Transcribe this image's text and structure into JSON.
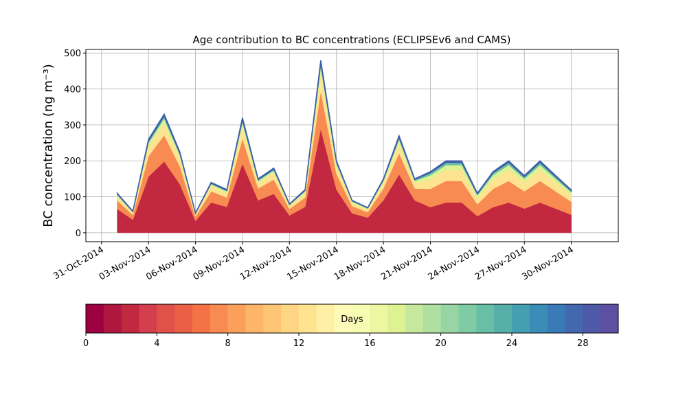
{
  "chart_data": {
    "type": "stacked_area",
    "title": "Age contribution to BC concentrations (ECLIPSEv6 and CAMS)",
    "y_label": "BC concentration (ng m⁻³)",
    "x": [
      "2014-11-01",
      "2014-11-02",
      "2014-11-03",
      "2014-11-04",
      "2014-11-05",
      "2014-11-06",
      "2014-11-07",
      "2014-11-08",
      "2014-11-09",
      "2014-11-10",
      "2014-11-11",
      "2014-11-12",
      "2014-11-13",
      "2014-11-14",
      "2014-11-15",
      "2014-11-16",
      "2014-11-17",
      "2014-11-18",
      "2014-11-19",
      "2014-11-20",
      "2014-11-21",
      "2014-11-22",
      "2014-11-23",
      "2014-11-24",
      "2014-11-25",
      "2014-11-26",
      "2014-11-27",
      "2014-11-28",
      "2014-11-29",
      "2014-11-30"
    ],
    "series": [
      {
        "color": "#c2283f",
        "values": [
          66,
          36,
          156,
          198,
          135,
          33,
          84,
          72,
          192,
          90,
          108,
          48,
          72,
          288,
          120,
          54,
          42,
          90,
          162,
          90,
          71,
          84,
          84,
          46,
          71,
          84,
          67,
          84,
          67,
          50
        ]
      },
      {
        "color": "#f88b52",
        "values": [
          24,
          13,
          57,
          73,
          50,
          12,
          31,
          26,
          70,
          33,
          40,
          18,
          26,
          106,
          44,
          20,
          15,
          33,
          59,
          33,
          51,
          60,
          60,
          33,
          51,
          60,
          48,
          60,
          48,
          36
        ]
      },
      {
        "color": "#fee391",
        "values": [
          11,
          6,
          26,
          33,
          22,
          6,
          14,
          12,
          32,
          15,
          18,
          8,
          12,
          48,
          20,
          9,
          7,
          15,
          27,
          15,
          26,
          30,
          30,
          17,
          26,
          30,
          24,
          30,
          24,
          18
        ]
      },
      {
        "color": "#def294",
        "values": [
          4,
          2,
          10,
          13,
          9,
          2,
          6,
          5,
          13,
          6,
          7,
          3,
          5,
          19,
          8,
          4,
          3,
          6,
          11,
          6,
          12,
          14,
          14,
          8,
          12,
          14,
          11,
          14,
          11,
          8
        ]
      },
      {
        "color": "#69bfa5",
        "values": [
          3,
          2,
          7,
          8,
          6,
          1,
          3,
          3,
          8,
          4,
          4,
          2,
          3,
          12,
          5,
          2,
          2,
          4,
          7,
          4,
          7,
          8,
          8,
          4,
          7,
          8,
          6,
          8,
          6,
          5
        ]
      },
      {
        "color": "#4268ae",
        "values": [
          2,
          1,
          4,
          5,
          3,
          1,
          2,
          2,
          5,
          2,
          3,
          1,
          2,
          7,
          3,
          1,
          1,
          2,
          4,
          2,
          3,
          4,
          4,
          2,
          3,
          4,
          3,
          4,
          3,
          2
        ]
      }
    ],
    "xlim": [
      "2014-10-30",
      "2014-12-03"
    ],
    "xticks": [
      {
        "value": "2014-10-31",
        "label": "31-Oct-2014"
      },
      {
        "value": "2014-11-03",
        "label": "03-Nov-2014"
      },
      {
        "value": "2014-11-06",
        "label": "06-Nov-2014"
      },
      {
        "value": "2014-11-09",
        "label": "09-Nov-2014"
      },
      {
        "value": "2014-11-12",
        "label": "12-Nov-2014"
      },
      {
        "value": "2014-11-15",
        "label": "15-Nov-2014"
      },
      {
        "value": "2014-11-18",
        "label": "18-Nov-2014"
      },
      {
        "value": "2014-11-21",
        "label": "21-Nov-2014"
      },
      {
        "value": "2014-11-24",
        "label": "24-Nov-2014"
      },
      {
        "value": "2014-11-27",
        "label": "27-Nov-2014"
      },
      {
        "value": "2014-11-30",
        "label": "30-Nov-2014"
      }
    ],
    "ylim": [
      -25,
      510
    ],
    "yticks": [
      0,
      100,
      200,
      300,
      400,
      500
    ],
    "grid": true,
    "colorbar": {
      "label": "Days",
      "lim": [
        0,
        30
      ],
      "ticks": [
        0,
        4,
        8,
        12,
        16,
        20,
        24,
        28
      ],
      "colors": [
        "#9e0142",
        "#b0173f",
        "#c2283f",
        "#d53e4f",
        "#e05149",
        "#ea6046",
        "#f47245",
        "#f88b52",
        "#fba05b",
        "#fdb567",
        "#fdc574",
        "#fed582",
        "#fee391",
        "#fff0a6",
        "#fefbb8",
        "#f7fcb3",
        "#ecf7a2",
        "#def294",
        "#c6e89e",
        "#b0dfa2",
        "#98d5a4",
        "#7fcba4",
        "#69bfa5",
        "#56b0a9",
        "#449fb0",
        "#3b8cb7",
        "#3a7ab6",
        "#4268ae",
        "#4e5aa7",
        "#5e4fa2"
      ]
    }
  }
}
